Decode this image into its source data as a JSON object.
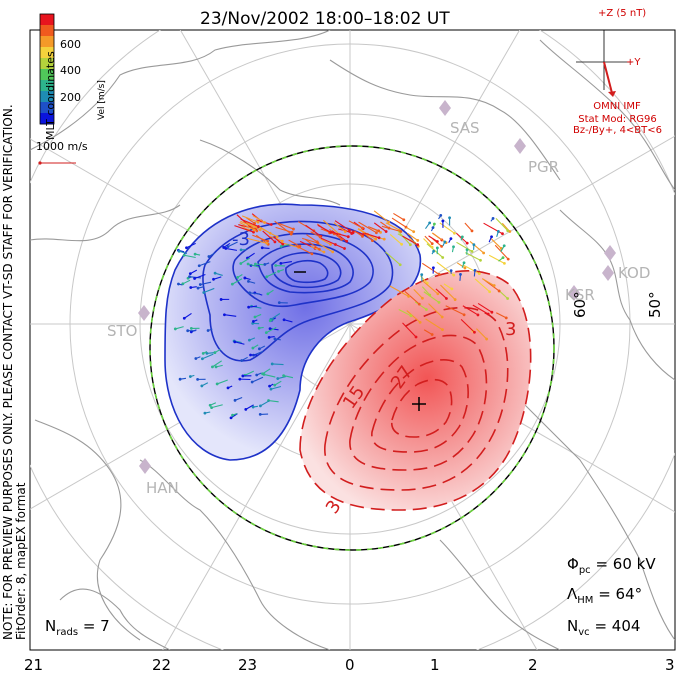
{
  "title": "23/Nov/2002  18:00–18:02  UT",
  "side_note": {
    "line1": "NOTE: FOR PREVIEW PURPOSES ONLY. PLEASE CONTACT VT-SD STAFF FOR VERIFICATION.",
    "line2": "FitOrder: 8, mapEX format"
  },
  "coords_label": "MLT coordinates",
  "colorbar": {
    "label": "Vel [m/s]",
    "ticks": [
      "600",
      "400",
      "200"
    ],
    "colors": [
      "#e8141e",
      "#f05a1e",
      "#f59a28",
      "#f5d23c",
      "#b4d23c",
      "#50c85a",
      "#2db48c",
      "#1e8cb4",
      "#1e50c8",
      "#0a14dc"
    ]
  },
  "ref_vector": "1000 m/s",
  "imf": {
    "z_label": "+Z (5 nT)",
    "y_label": "+Y",
    "source": "OMNI IMF",
    "model": "Stat Mod: RG96",
    "condition": "Bz-/By+, 4<BT<6"
  },
  "lat_labels": [
    "60°",
    "50°"
  ],
  "stations": [
    "SAS",
    "PGR",
    "KOD",
    "KSR",
    "STO",
    "HAN"
  ],
  "contour_labels": [
    "-3",
    "3",
    "15",
    "27",
    "3"
  ],
  "stats": {
    "phi_pc": "= 60 kV",
    "lambda_hm": "= 64°",
    "n_vc": "= 404",
    "n_rads": "= 7"
  },
  "mlt_ticks": [
    "21",
    "22",
    "23",
    "0",
    "1",
    "2",
    "3"
  ],
  "colors": {
    "negative_potential": "#1e32c8",
    "positive_potential": "#d21e1e",
    "hmb": "#6ad23c",
    "land": "#9a9a9a"
  }
}
